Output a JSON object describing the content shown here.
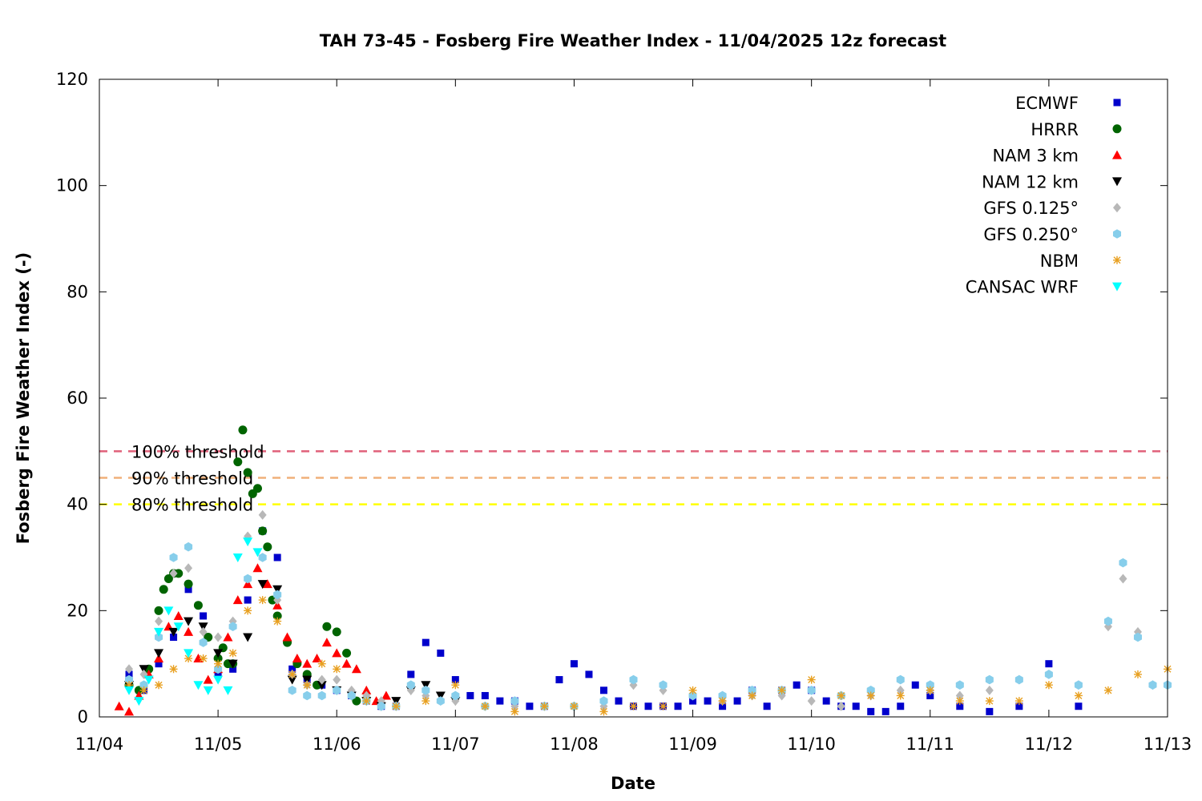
{
  "chart_data": {
    "type": "scatter",
    "title": "TAH 73-45 - Fosberg Fire Weather Index - 11/04/2025 12z forecast",
    "xlabel": "Date",
    "ylabel": "Fosberg Fire Weather Index (-)",
    "xlim": [
      "2025-11-04T00:00",
      "2025-11-13T00:00"
    ],
    "ylim": [
      0,
      120
    ],
    "x_ticks": [
      "11/04",
      "11/05",
      "11/06",
      "11/07",
      "11/08",
      "11/09",
      "11/10",
      "11/11",
      "11/12",
      "11/13"
    ],
    "y_ticks": [
      0,
      20,
      40,
      60,
      80,
      100,
      120
    ],
    "grid": false,
    "legend_position": "top-right",
    "thresholds": [
      {
        "label": "100% threshold",
        "value": 50,
        "color": "#e0607a"
      },
      {
        "label": "90% threshold",
        "value": 45,
        "color": "#f0b07a"
      },
      {
        "label": "80% threshold",
        "value": 40,
        "color": "#ffff00"
      }
    ],
    "series": [
      {
        "name": "ECMWF",
        "marker": "square",
        "color": "#0000cc",
        "x": [
          "11/04 06z",
          "11/04 09z",
          "11/04 12z",
          "11/04 15z",
          "11/04 18z",
          "11/04 21z",
          "11/05 00z",
          "11/05 03z",
          "11/05 06z",
          "11/05 09z",
          "11/05 12z",
          "11/05 15z",
          "11/05 18z",
          "11/05 21z",
          "11/06 00z",
          "11/06 03z",
          "11/06 06z",
          "11/06 09z",
          "11/06 12z",
          "11/06 15z",
          "11/06 18z",
          "11/06 21z",
          "11/07 00z",
          "11/07 03z",
          "11/07 06z",
          "11/07 09z",
          "11/07 12z",
          "11/07 15z",
          "11/07 18z",
          "11/07 21z",
          "11/08 00z",
          "11/08 03z",
          "11/08 06z",
          "11/08 09z",
          "11/08 12z",
          "11/08 15z",
          "11/08 18z",
          "11/08 21z",
          "11/09 00z",
          "11/09 03z",
          "11/09 06z",
          "11/09 09z",
          "11/09 12z",
          "11/09 15z",
          "11/09 18z",
          "11/09 21z",
          "11/10 00z",
          "11/10 03z",
          "11/10 06z",
          "11/10 09z",
          "11/10 12z",
          "11/10 15z",
          "11/10 18z",
          "11/10 21z",
          "11/11 00z",
          "11/11 06z",
          "11/11 12z",
          "11/11 18z",
          "11/12 00z",
          "11/12 06z"
        ],
        "y": [
          8,
          5,
          10,
          15,
          24,
          19,
          8,
          9,
          22,
          35,
          30,
          9,
          7,
          6,
          5,
          4,
          3,
          2,
          2,
          8,
          14,
          12,
          7,
          4,
          4,
          3,
          3,
          2,
          2,
          7,
          10,
          8,
          5,
          3,
          2,
          2,
          2,
          2,
          3,
          3,
          2,
          3,
          5,
          2,
          5,
          6,
          5,
          3,
          2,
          2,
          1,
          1,
          2,
          6,
          4,
          2,
          1,
          2,
          10,
          2
        ]
      },
      {
        "name": "HRRR",
        "marker": "circle",
        "color": "#006400",
        "x": [
          "11/04 06z",
          "11/04 08z",
          "11/04 10z",
          "11/04 12z",
          "11/04 13z",
          "11/04 14z",
          "11/04 15z",
          "11/04 16z",
          "11/04 18z",
          "11/04 20z",
          "11/04 22z",
          "11/05 00z",
          "11/05 01z",
          "11/05 02z",
          "11/05 03z",
          "11/05 04z",
          "11/05 05z",
          "11/05 06z",
          "11/05 07z",
          "11/05 08z",
          "11/05 09z",
          "11/05 10z",
          "11/05 11z",
          "11/05 12z",
          "11/05 14z",
          "11/05 16z",
          "11/05 18z",
          "11/05 20z",
          "11/05 22z",
          "11/06 00z",
          "11/06 02z",
          "11/06 04z"
        ],
        "y": [
          6,
          5,
          9,
          20,
          24,
          26,
          27,
          27,
          25,
          21,
          15,
          11,
          13,
          10,
          10,
          48,
          54,
          46,
          42,
          43,
          35,
          32,
          22,
          19,
          14,
          10,
          8,
          6,
          17,
          16,
          12,
          3
        ]
      },
      {
        "name": "NAM 3 km",
        "marker": "triangle-up",
        "color": "#ff0000",
        "x": [
          "11/04 04z",
          "11/04 06z",
          "11/04 08z",
          "11/04 10z",
          "11/04 12z",
          "11/04 14z",
          "11/04 16z",
          "11/04 18z",
          "11/04 20z",
          "11/04 22z",
          "11/05 00z",
          "11/05 02z",
          "11/05 04z",
          "11/05 06z",
          "11/05 08z",
          "11/05 10z",
          "11/05 12z",
          "11/05 14z",
          "11/05 16z",
          "11/05 18z",
          "11/05 20z",
          "11/05 22z",
          "11/06 00z",
          "11/06 02z",
          "11/06 04z",
          "11/06 06z",
          "11/06 08z",
          "11/06 10z"
        ],
        "y": [
          2,
          1,
          4,
          8,
          11,
          17,
          19,
          16,
          11,
          7,
          9,
          15,
          22,
          25,
          28,
          25,
          21,
          15,
          11,
          10,
          11,
          14,
          12,
          10,
          9,
          5,
          3,
          4
        ]
      },
      {
        "name": "NAM 12 km",
        "marker": "triangle-down",
        "color": "#000000",
        "x": [
          "11/04 06z",
          "11/04 09z",
          "11/04 12z",
          "11/04 15z",
          "11/04 18z",
          "11/04 21z",
          "11/05 00z",
          "11/05 03z",
          "11/05 06z",
          "11/05 09z",
          "11/05 12z",
          "11/05 15z",
          "11/05 18z",
          "11/05 21z",
          "11/06 00z",
          "11/06 03z",
          "11/06 06z",
          "11/06 09z",
          "11/06 12z",
          "11/06 15z",
          "11/06 18z",
          "11/06 21z",
          "11/07 00z"
        ],
        "y": [
          6,
          9,
          12,
          16,
          18,
          17,
          12,
          10,
          15,
          25,
          24,
          7,
          7,
          6,
          5,
          4,
          3,
          2,
          3,
          5,
          6,
          4,
          3
        ]
      },
      {
        "name": "GFS 0.125°",
        "marker": "diamond",
        "color": "#b8b8b8",
        "x": [
          "11/04 06z",
          "11/04 09z",
          "11/04 12z",
          "11/04 15z",
          "11/04 18z",
          "11/04 21z",
          "11/05 00z",
          "11/05 03z",
          "11/05 06z",
          "11/05 09z",
          "11/05 12z",
          "11/05 15z",
          "11/05 18z",
          "11/05 21z",
          "11/06 00z",
          "11/06 03z",
          "11/06 06z",
          "11/06 09z",
          "11/06 12z",
          "11/06 15z",
          "11/06 18z",
          "11/06 21z",
          "11/07 00z",
          "11/07 06z",
          "11/07 12z",
          "11/07 18z",
          "11/08 00z",
          "11/08 06z",
          "11/08 12z",
          "11/08 18z",
          "11/09 00z",
          "11/09 06z",
          "11/09 12z",
          "11/09 18z",
          "11/10 00z",
          "11/10 06z",
          "11/10 12z",
          "11/10 18z",
          "11/11 00z",
          "11/11 06z",
          "11/11 12z",
          "11/11 18z",
          "11/12 00z",
          "11/12 06z",
          "11/12 12z",
          "11/12 15z",
          "11/12 18z",
          "11/12 21z",
          "11/13 00z"
        ],
        "y": [
          9,
          8,
          18,
          27,
          28,
          16,
          15,
          18,
          34,
          38,
          22,
          8,
          6,
          7,
          7,
          5,
          4,
          3,
          2,
          5,
          4,
          3,
          3,
          2,
          2,
          2,
          2,
          2,
          6,
          5,
          4,
          3,
          4,
          4,
          3,
          2,
          4,
          5,
          5,
          4,
          5,
          7,
          8,
          6,
          17,
          26,
          16,
          6,
          6
        ]
      },
      {
        "name": "GFS 0.250°",
        "marker": "hexagon",
        "color": "#87ceeb",
        "x": [
          "11/04 06z",
          "11/04 09z",
          "11/04 12z",
          "11/04 15z",
          "11/04 18z",
          "11/04 21z",
          "11/05 00z",
          "11/05 03z",
          "11/05 06z",
          "11/05 09z",
          "11/05 12z",
          "11/05 15z",
          "11/05 18z",
          "11/05 21z",
          "11/06 00z",
          "11/06 03z",
          "11/06 06z",
          "11/06 09z",
          "11/06 12z",
          "11/06 15z",
          "11/06 18z",
          "11/06 21z",
          "11/07 00z",
          "11/07 06z",
          "11/07 12z",
          "11/07 18z",
          "11/08 00z",
          "11/08 06z",
          "11/08 12z",
          "11/08 18z",
          "11/09 00z",
          "11/09 06z",
          "11/09 12z",
          "11/09 18z",
          "11/10 00z",
          "11/10 06z",
          "11/10 12z",
          "11/10 18z",
          "11/11 00z",
          "11/11 06z",
          "11/11 12z",
          "11/11 18z",
          "11/12 00z",
          "11/12 06z",
          "11/12 12z",
          "11/12 15z",
          "11/12 18z",
          "11/12 21z",
          "11/13 00z"
        ],
        "y": [
          7,
          6,
          15,
          30,
          32,
          14,
          9,
          17,
          26,
          30,
          23,
          5,
          4,
          4,
          5,
          4,
          3,
          2,
          2,
          6,
          5,
          3,
          4,
          2,
          3,
          2,
          2,
          3,
          7,
          6,
          4,
          4,
          5,
          5,
          5,
          4,
          5,
          7,
          6,
          6,
          7,
          7,
          8,
          6,
          18,
          29,
          15,
          6,
          6
        ]
      },
      {
        "name": "NBM",
        "marker": "star",
        "color": "#e8a020",
        "x": [
          "11/04 06z",
          "11/04 09z",
          "11/04 12z",
          "11/04 15z",
          "11/04 18z",
          "11/04 21z",
          "11/05 00z",
          "11/05 03z",
          "11/05 06z",
          "11/05 09z",
          "11/05 12z",
          "11/05 15z",
          "11/05 18z",
          "11/05 21z",
          "11/06 00z",
          "11/06 06z",
          "11/06 12z",
          "11/06 18z",
          "11/07 00z",
          "11/07 06z",
          "11/07 12z",
          "11/07 18z",
          "11/08 00z",
          "11/08 06z",
          "11/08 12z",
          "11/08 18z",
          "11/09 00z",
          "11/09 06z",
          "11/09 12z",
          "11/09 18z",
          "11/10 00z",
          "11/10 06z",
          "11/10 12z",
          "11/10 18z",
          "11/11 00z",
          "11/11 06z",
          "11/11 12z",
          "11/11 18z",
          "11/12 00z",
          "11/12 06z",
          "11/12 12z",
          "11/12 18z",
          "11/13 00z"
        ],
        "y": [
          6,
          5,
          6,
          9,
          11,
          11,
          10,
          12,
          20,
          22,
          18,
          8,
          6,
          10,
          9,
          3,
          2,
          3,
          6,
          2,
          1,
          2,
          2,
          1,
          2,
          2,
          5,
          3,
          4,
          5,
          7,
          4,
          4,
          4,
          5,
          3,
          3,
          3,
          6,
          4,
          5,
          8,
          9
        ]
      },
      {
        "name": "CANSAC WRF",
        "marker": "triangle-down",
        "color": "#00ffff",
        "x": [
          "11/04 06z",
          "11/04 08z",
          "11/04 10z",
          "11/04 12z",
          "11/04 14z",
          "11/04 16z",
          "11/04 18z",
          "11/04 20z",
          "11/04 22z",
          "11/05 00z",
          "11/05 02z",
          "11/05 04z",
          "11/05 06z",
          "11/05 08z"
        ],
        "y": [
          5,
          3,
          7,
          16,
          20,
          17,
          12,
          6,
          5,
          7,
          5,
          30,
          33,
          31
        ]
      }
    ]
  }
}
